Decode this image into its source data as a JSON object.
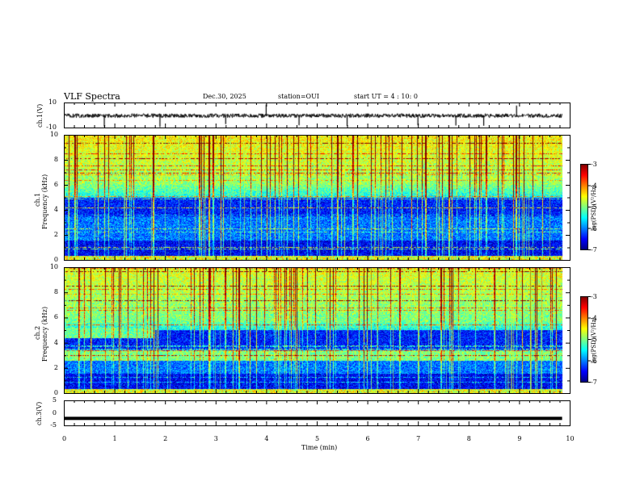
{
  "header": {
    "title": "VLF Spectra",
    "date": "Dec.30, 2025",
    "station": "station=OUI",
    "start_ut": "start  UT =   4 : 10: 0"
  },
  "chart_data": {
    "type": "heatmap",
    "title": "VLF Spectra",
    "xlabel": "Time  (min)",
    "xlim": [
      0,
      10
    ],
    "x_ticks": [
      "0",
      "1",
      "2",
      "3",
      "4",
      "5",
      "6",
      "7",
      "8",
      "9",
      "10"
    ],
    "data_end_min": 9.85,
    "panels": [
      {
        "name": "ch1-waveform",
        "ylabel": "ch.1(V)",
        "ylim": [
          -10,
          10
        ],
        "y_ticks": [
          "10",
          "-10"
        ],
        "baseline_v": -0.5,
        "spike_times_min": [
          0.8,
          1.9,
          3.2,
          4.0,
          4.65,
          5.6,
          7.0,
          7.75,
          8.3,
          8.95
        ]
      },
      {
        "name": "ch1-spectrogram",
        "ylabel_line1": "ch.1",
        "ylabel_line2": "Frequency  (kHz)",
        "ylim": [
          0,
          10
        ],
        "y_ticks": [
          "0",
          "2",
          "4",
          "6",
          "8",
          "10"
        ],
        "colorbar": {
          "range": [
            -7,
            -3
          ],
          "ticks": [
            "-3",
            "-4",
            "-5",
            "-6",
            "-7"
          ],
          "label": "log(PSD)(V²/Hz)"
        }
      },
      {
        "name": "ch2-spectrogram",
        "ylabel_line1": "ch.2",
        "ylabel_line2": "Frequency  (kHz)",
        "ylim": [
          0,
          10
        ],
        "y_ticks": [
          "0",
          "2",
          "4",
          "6",
          "8",
          "10"
        ],
        "colorbar": {
          "range": [
            -7,
            -3
          ],
          "ticks": [
            "-3",
            "-4",
            "-5",
            "-6",
            "-7"
          ],
          "label": "log(PSD)(V²/Hz)"
        }
      },
      {
        "name": "ch3-waveform",
        "ylabel": "ch.3(V)",
        "ylim": [
          -5,
          5
        ],
        "y_ticks": [
          "5",
          "0",
          "-5"
        ],
        "baseline_v": -2.2
      }
    ]
  }
}
